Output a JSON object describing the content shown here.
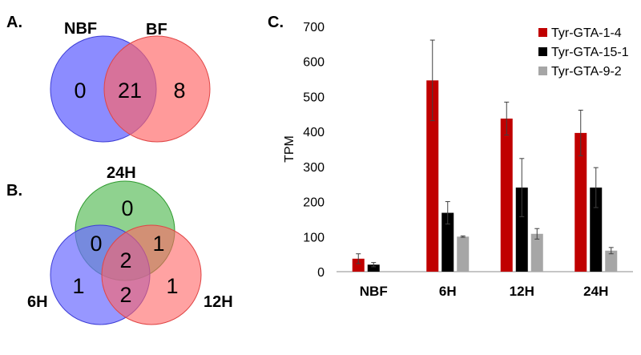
{
  "colors": {
    "venn_blue": "#6b6bff",
    "venn_red": "#ff6464",
    "venn_green": "#5fbf5f",
    "venn_blue_stroke": "#3d3dd6",
    "venn_red_stroke": "#e04545",
    "venn_green_stroke": "#2e9a2e"
  },
  "panel_a": {
    "label": "A.",
    "sets": [
      "NBF",
      "BF"
    ],
    "counts": {
      "nbf_only": "0",
      "both": "21",
      "bf_only": "8"
    }
  },
  "panel_b": {
    "label": "B.",
    "sets": {
      "top": "24H",
      "left": "6H",
      "right": "12H"
    },
    "counts": {
      "h24_only": "0",
      "h6_h24": "0",
      "h12_h24": "1",
      "all": "2",
      "h6_only": "1",
      "h6_h12": "2",
      "h12_only": "1"
    }
  },
  "panel_c": {
    "label": "C."
  },
  "chart_data": {
    "type": "bar",
    "title": "",
    "xlabel": "",
    "ylabel": "TPM",
    "ylim": [
      0,
      700
    ],
    "yticks": [
      0,
      100,
      200,
      300,
      400,
      500,
      600,
      700
    ],
    "categories": [
      "NBF",
      "6H",
      "12H",
      "24H"
    ],
    "legend_position": "top-right",
    "series": [
      {
        "name": "Tyr-GTA-1-4",
        "color": "#c00000",
        "values": [
          37,
          546,
          437,
          396
        ],
        "errors": [
          14,
          115,
          47,
          65
        ]
      },
      {
        "name": "Tyr-GTA-15-1",
        "color": "#000000",
        "values": [
          20,
          168,
          240,
          240
        ],
        "errors": [
          6,
          32,
          83,
          57
        ]
      },
      {
        "name": "Tyr-GTA-9-2",
        "color": "#a6a6a6",
        "values": [
          0,
          100,
          108,
          60
        ],
        "errors": [
          0,
          2,
          15,
          9
        ]
      }
    ]
  }
}
